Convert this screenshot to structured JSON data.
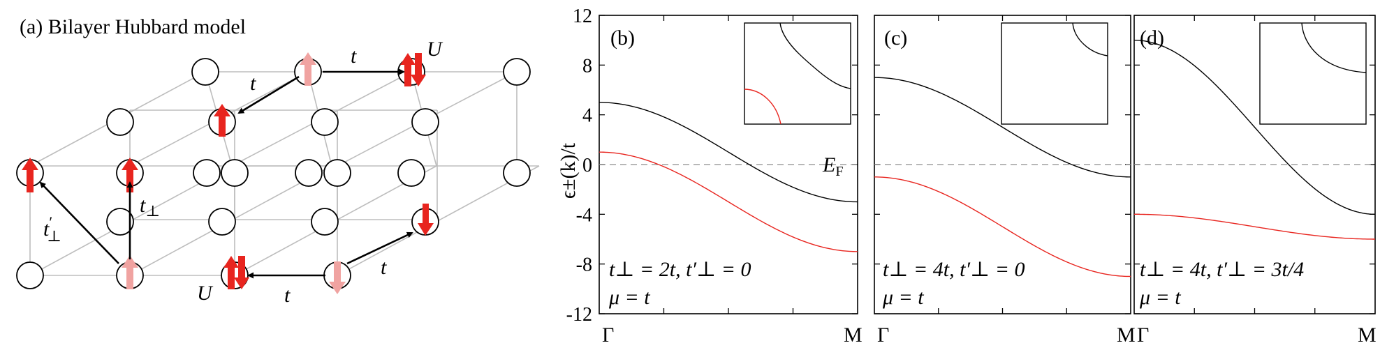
{
  "panel_a": {
    "title": "(a) Bilayer Hubbard model",
    "labels": {
      "t_top": "t",
      "t_mid": "t",
      "t_bottom": "t",
      "U_top": "U",
      "U_bottom": "U",
      "t_perp": "t",
      "t_perp_sub": "⊥",
      "t_perp_prime": "t",
      "t_perp_prime_sup": "′",
      "t_perp_prime_sub": "⊥"
    }
  },
  "colors": {
    "spin_strong": "#e8251f",
    "spin_faded": "#f0a3a1",
    "lattice": "#bdbdbd",
    "fermi_line": "#8c8c8c",
    "band_upper": "#000000",
    "band_lower": "#e8251f"
  },
  "ylabel": "ϵ±(k)/t",
  "y_ticks": [
    "12",
    "8",
    "4",
    "0",
    "-4",
    "-8",
    "-12"
  ],
  "fermi_label": "E",
  "fermi_sub": "F",
  "chart_data": [
    {
      "type": "line",
      "panel": "(b)",
      "xlabels": [
        "Γ",
        "M"
      ],
      "ylim": [
        -12,
        12
      ],
      "x": [
        0,
        0.25,
        0.5,
        0.75,
        1.0
      ],
      "series": [
        {
          "name": "ϵ+",
          "values": [
            5.0,
            4.41,
            1.0,
            -2.41,
            -3.0
          ]
        },
        {
          "name": "ϵ−",
          "values": [
            1.0,
            0.41,
            -3.0,
            -6.41,
            -7.0
          ]
        }
      ],
      "params_line1": "t⊥ = 2t, t′⊥ = 0",
      "params_line2": "μ = t"
    },
    {
      "type": "line",
      "panel": "(c)",
      "xlabels": [
        "Γ",
        "M"
      ],
      "ylim": [
        -12,
        12
      ],
      "x": [
        0,
        0.25,
        0.5,
        0.75,
        1.0
      ],
      "series": [
        {
          "name": "ϵ+",
          "values": [
            7.0,
            6.41,
            3.0,
            -0.41,
            -1.0
          ]
        },
        {
          "name": "ϵ−",
          "values": [
            -1.0,
            -1.59,
            -5.0,
            -8.41,
            -9.0
          ]
        }
      ],
      "params_line1": "t⊥ = 4t, t′⊥ = 0",
      "params_line2": "μ = t"
    },
    {
      "type": "line",
      "panel": "(d)",
      "xlabels": [
        "Γ",
        "M"
      ],
      "ylim": [
        -12,
        12
      ],
      "x": [
        0,
        0.25,
        0.5,
        0.75,
        1.0
      ],
      "series": [
        {
          "name": "ϵ+",
          "values": [
            10.0,
            8.83,
            3.0,
            -2.83,
            -4.0
          ]
        },
        {
          "name": "ϵ−",
          "values": [
            -4.0,
            -4.29,
            -5.0,
            -5.71,
            -6.0
          ]
        }
      ],
      "params_line1": "t⊥ = 4t, t′⊥ = 3t/4",
      "params_line2": "μ = t"
    }
  ]
}
